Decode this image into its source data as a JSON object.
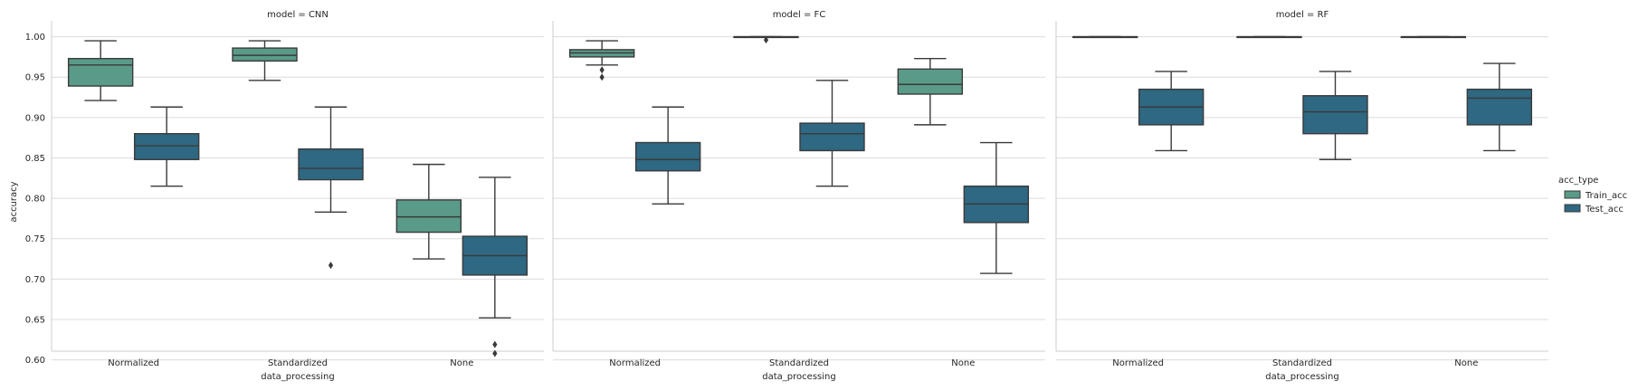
{
  "chart_data": {
    "type": "box",
    "ylabel": "accuracy",
    "xlabel": "data_processing",
    "categories": [
      "Normalized",
      "Standardized",
      "None"
    ],
    "ylim": [
      0.59,
      1.02
    ],
    "yticks": [
      0.6,
      0.65,
      0.7,
      0.75,
      0.8,
      0.85,
      0.9,
      0.95,
      1.0
    ],
    "ytick_labels": [
      "0.60",
      "0.65",
      "0.70",
      "0.75",
      "0.80",
      "0.85",
      "0.90",
      "0.95",
      "1.00"
    ],
    "grid": true,
    "legend": {
      "title": "acc_type",
      "position": "right",
      "entries": [
        {
          "name": "Train_acc",
          "color": "#5a9a88"
        },
        {
          "name": "Test_acc",
          "color": "#2e6882"
        }
      ]
    },
    "panels": [
      {
        "title": "model = CNN",
        "groups": [
          {
            "category": "Normalized",
            "boxes": [
              {
                "series": "Train_acc",
                "whislo": 0.921,
                "q1": 0.939,
                "med": 0.965,
                "q3": 0.973,
                "whishi": 0.995,
                "fliers": []
              },
              {
                "series": "Test_acc",
                "whislo": 0.815,
                "q1": 0.848,
                "med": 0.865,
                "q3": 0.88,
                "whishi": 0.913,
                "fliers": []
              }
            ]
          },
          {
            "category": "Standardized",
            "boxes": [
              {
                "series": "Train_acc",
                "whislo": 0.946,
                "q1": 0.97,
                "med": 0.977,
                "q3": 0.986,
                "whishi": 0.995,
                "fliers": []
              },
              {
                "series": "Test_acc",
                "whislo": 0.783,
                "q1": 0.823,
                "med": 0.837,
                "q3": 0.861,
                "whishi": 0.913,
                "fliers": [
                  0.717
                ]
              }
            ]
          },
          {
            "category": "None",
            "boxes": [
              {
                "series": "Train_acc",
                "whislo": 0.725,
                "q1": 0.758,
                "med": 0.777,
                "q3": 0.798,
                "whishi": 0.842,
                "fliers": []
              },
              {
                "series": "Test_acc",
                "whislo": 0.652,
                "q1": 0.705,
                "med": 0.729,
                "q3": 0.753,
                "whishi": 0.826,
                "fliers": [
                  0.619,
                  0.608
                ]
              }
            ]
          }
        ]
      },
      {
        "title": "model = FC",
        "groups": [
          {
            "category": "Normalized",
            "boxes": [
              {
                "series": "Train_acc",
                "whislo": 0.965,
                "q1": 0.975,
                "med": 0.98,
                "q3": 0.984,
                "whishi": 0.995,
                "fliers": [
                  0.959,
                  0.95
                ]
              },
              {
                "series": "Test_acc",
                "whislo": 0.793,
                "q1": 0.834,
                "med": 0.848,
                "q3": 0.869,
                "whishi": 0.913,
                "fliers": []
              }
            ]
          },
          {
            "category": "Standardized",
            "boxes": [
              {
                "series": "Train_acc",
                "whislo": 1.0,
                "q1": 1.0,
                "med": 1.0,
                "q3": 1.0,
                "whishi": 1.0,
                "fliers": [
                  0.996
                ]
              },
              {
                "series": "Test_acc",
                "whislo": 0.815,
                "q1": 0.859,
                "med": 0.88,
                "q3": 0.893,
                "whishi": 0.946,
                "fliers": []
              }
            ]
          },
          {
            "category": "None",
            "boxes": [
              {
                "series": "Train_acc",
                "whislo": 0.891,
                "q1": 0.929,
                "med": 0.941,
                "q3": 0.96,
                "whishi": 0.973,
                "fliers": []
              },
              {
                "series": "Test_acc",
                "whislo": 0.707,
                "q1": 0.77,
                "med": 0.793,
                "q3": 0.815,
                "whishi": 0.869,
                "fliers": []
              }
            ]
          }
        ]
      },
      {
        "title": "model = RF",
        "groups": [
          {
            "category": "Normalized",
            "boxes": [
              {
                "series": "Train_acc",
                "whislo": 1.0,
                "q1": 1.0,
                "med": 1.0,
                "q3": 1.0,
                "whishi": 1.0,
                "fliers": []
              },
              {
                "series": "Test_acc",
                "whislo": 0.859,
                "q1": 0.891,
                "med": 0.913,
                "q3": 0.935,
                "whishi": 0.957,
                "fliers": []
              }
            ]
          },
          {
            "category": "Standardized",
            "boxes": [
              {
                "series": "Train_acc",
                "whislo": 1.0,
                "q1": 1.0,
                "med": 1.0,
                "q3": 1.0,
                "whishi": 1.0,
                "fliers": []
              },
              {
                "series": "Test_acc",
                "whislo": 0.848,
                "q1": 0.88,
                "med": 0.907,
                "q3": 0.927,
                "whishi": 0.957,
                "fliers": []
              }
            ]
          },
          {
            "category": "None",
            "boxes": [
              {
                "series": "Train_acc",
                "whislo": 1.0,
                "q1": 1.0,
                "med": 1.0,
                "q3": 1.0,
                "whishi": 1.0,
                "fliers": []
              },
              {
                "series": "Test_acc",
                "whislo": 0.859,
                "q1": 0.891,
                "med": 0.924,
                "q3": 0.935,
                "whishi": 0.967,
                "fliers": []
              }
            ]
          }
        ]
      }
    ]
  }
}
